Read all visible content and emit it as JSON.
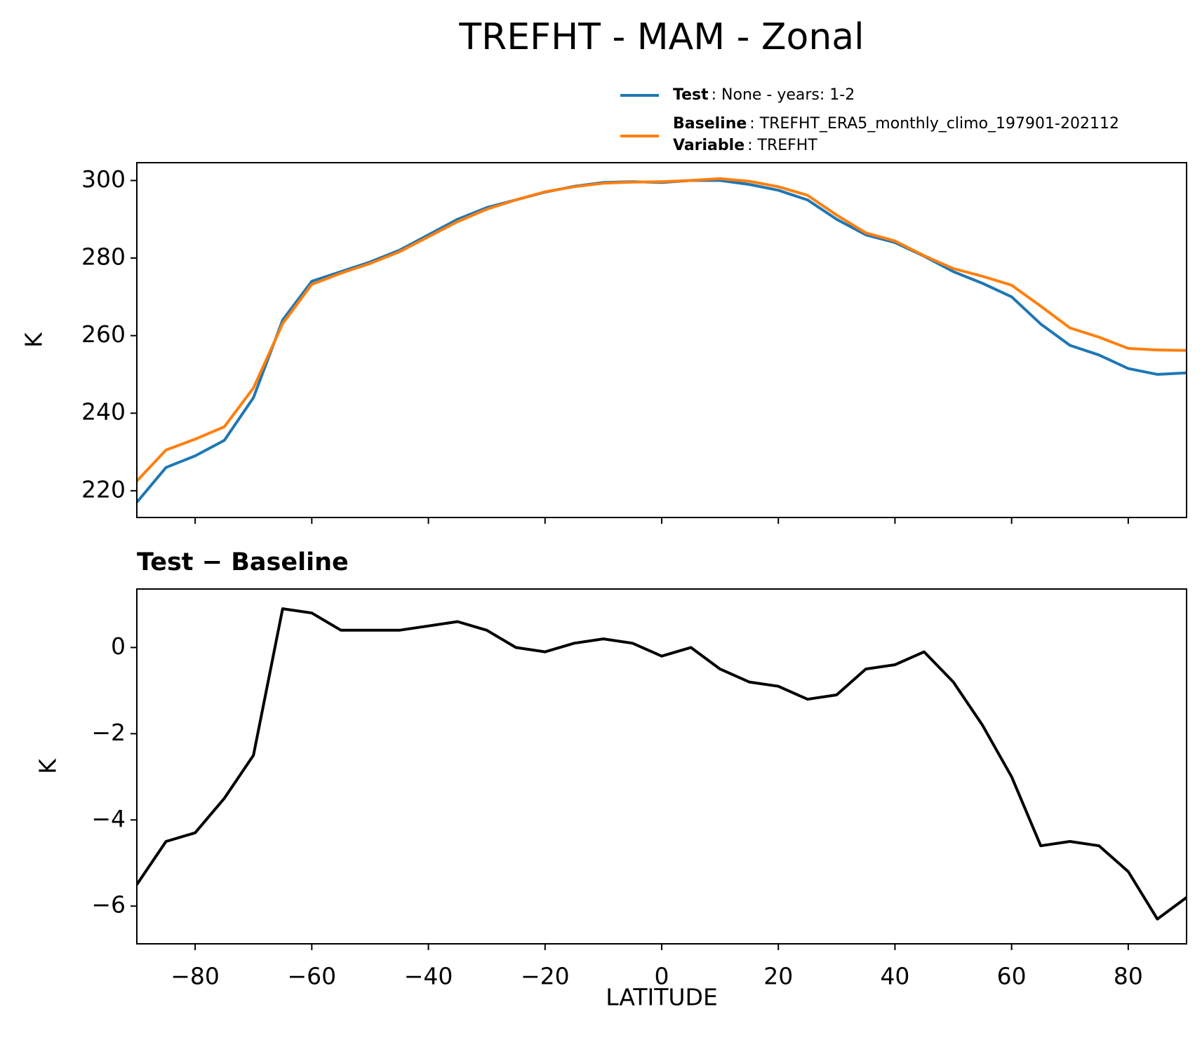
{
  "chart_data": [
    {
      "type": "line",
      "title": "TREFHT - MAM - Zonal",
      "ylabel": "K",
      "x": [
        -90,
        -85,
        -80,
        -75,
        -70,
        -65,
        -60,
        -55,
        -50,
        -45,
        -40,
        -35,
        -30,
        -25,
        -20,
        -15,
        -10,
        -5,
        0,
        5,
        10,
        15,
        20,
        25,
        30,
        35,
        40,
        45,
        50,
        55,
        60,
        65,
        70,
        75,
        80,
        85,
        90
      ],
      "series": [
        {
          "name": "Test",
          "description": ": None - years: 1-2",
          "color": "#1f77b4",
          "values": [
            217,
            226,
            229,
            233,
            244,
            264,
            274,
            276.5,
            279,
            282,
            286,
            290,
            293,
            295,
            297,
            298.5,
            299.5,
            299.7,
            299.5,
            300,
            300,
            299,
            297.5,
            295,
            290,
            286,
            284,
            280.5,
            276.5,
            273.5,
            270,
            263,
            257.5,
            255,
            251.5,
            250,
            250.4
          ]
        },
        {
          "name": "Baseline",
          "description": ": TREFHT_ERA5_monthly_climo_197901-202112",
          "color": "#ff7f0e",
          "values": [
            222.5,
            230.5,
            233.3,
            236.5,
            246.5,
            263.1,
            273.2,
            276.1,
            278.6,
            281.6,
            285.5,
            289.4,
            292.6,
            295,
            297.1,
            298.4,
            299.3,
            299.6,
            299.7,
            300,
            300.5,
            299.8,
            298.4,
            296.2,
            291.1,
            286.5,
            284.4,
            280.6,
            277.3,
            275.3,
            273,
            267.6,
            262,
            259.6,
            256.7,
            256.3,
            256.2
          ]
        }
      ],
      "legend_extra": {
        "name": "Variable",
        "description": ": TREFHT"
      },
      "xlim": [
        -90,
        90
      ],
      "xticks": [
        -80,
        -60,
        -40,
        -20,
        0,
        20,
        40,
        60,
        80
      ],
      "ylim": [
        213.1,
        304.6
      ],
      "yticks": [
        220,
        240,
        260,
        280,
        300
      ]
    },
    {
      "type": "line",
      "title": "Test − Baseline",
      "ylabel": "K",
      "xlabel": "LATITUDE",
      "x": [
        -90,
        -85,
        -80,
        -75,
        -70,
        -65,
        -60,
        -55,
        -50,
        -45,
        -40,
        -35,
        -30,
        -25,
        -20,
        -15,
        -10,
        -5,
        0,
        5,
        10,
        15,
        20,
        25,
        30,
        35,
        40,
        45,
        50,
        55,
        60,
        65,
        70,
        75,
        80,
        85,
        90
      ],
      "series": [
        {
          "color": "#000000",
          "values": [
            -5.5,
            -4.5,
            -4.3,
            -3.5,
            -2.5,
            0.9,
            0.8,
            0.4,
            0.4,
            0.4,
            0.5,
            0.6,
            0.4,
            0,
            -0.1,
            0.1,
            0.2,
            0.1,
            -0.2,
            0,
            -0.5,
            -0.8,
            -0.9,
            -1.2,
            -1.1,
            -0.5,
            -0.4,
            -0.1,
            -0.8,
            -1.8,
            -3,
            -4.6,
            -4.5,
            -4.6,
            -5.2,
            -6.3,
            -5.8
          ]
        }
      ],
      "xlim": [
        -90,
        90
      ],
      "xticks": [
        {
          "value": -80,
          "label": "−80"
        },
        {
          "value": -60,
          "label": "−60"
        },
        {
          "value": -40,
          "label": "−40"
        },
        {
          "value": -20,
          "label": "−20"
        },
        0,
        20,
        40,
        60,
        80
      ],
      "ylim": [
        -6.875,
        1.357
      ],
      "yticks": [
        {
          "value": -6,
          "label": "−6"
        },
        {
          "value": -4,
          "label": "−4"
        },
        {
          "value": -2,
          "label": "−2"
        },
        0
      ]
    }
  ]
}
